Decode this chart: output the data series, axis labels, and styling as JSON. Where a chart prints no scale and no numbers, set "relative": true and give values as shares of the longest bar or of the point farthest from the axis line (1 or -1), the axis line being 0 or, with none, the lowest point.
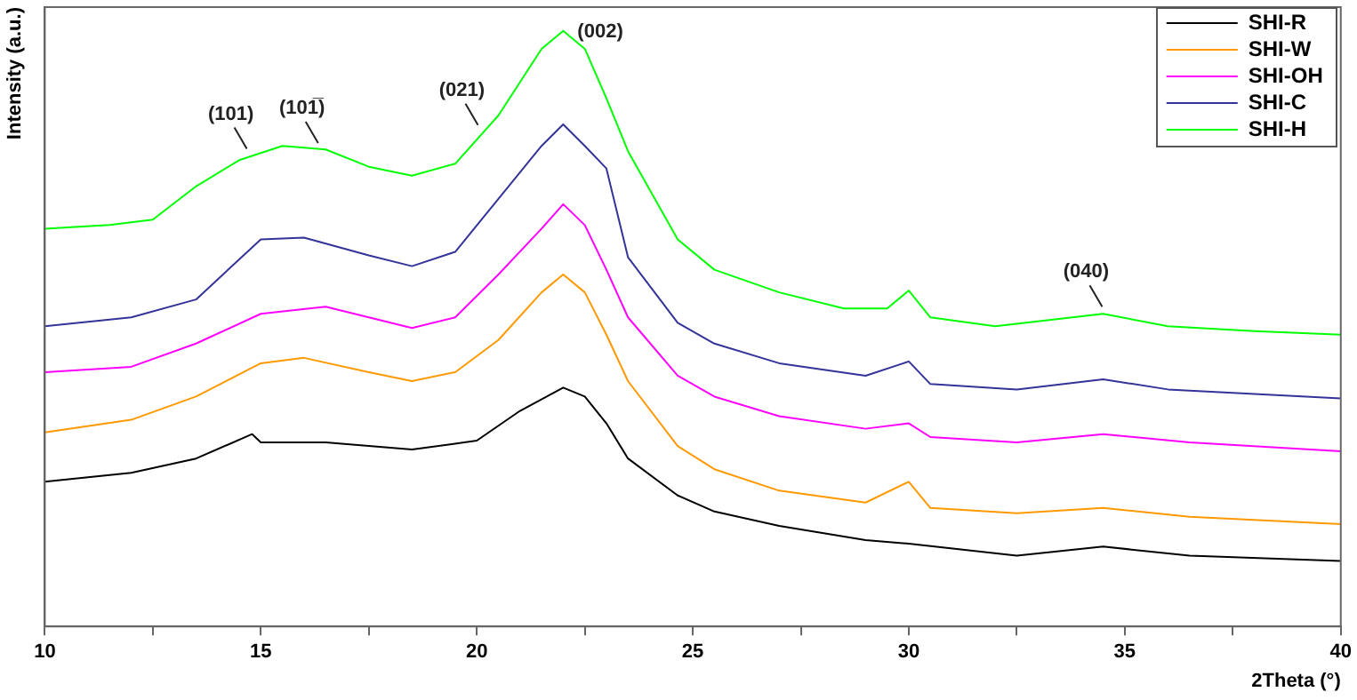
{
  "chart_data": {
    "type": "line",
    "xlabel": "2Theta (°)",
    "ylabel": "Intensity (a.u.)",
    "relative": true,
    "grid": false,
    "legend": "top right",
    "marker": "none",
    "line_style": "solid",
    "xlim": [
      10,
      40
    ],
    "xticks": [
      10,
      {
        "value": 12.5,
        "label": null
      },
      15,
      {
        "value": 17.5,
        "label": null
      },
      20,
      {
        "value": 22.5,
        "label": null
      },
      25,
      {
        "value": 27.5,
        "label": null
      },
      30,
      {
        "value": 32.5,
        "label": null
      },
      35,
      {
        "value": 37.5,
        "label": null
      },
      40
    ],
    "annotations": [
      {
        "text": "(101)",
        "x": 14.8,
        "y": 0.79
      },
      {
        "text": "(101̅)",
        "x": 16.45,
        "y": 0.8
      },
      {
        "text": "(021)",
        "x": 20.15,
        "y": 0.83
      },
      {
        "text": "(002)",
        "x": 22,
        "y": 1.0
      },
      {
        "text": "(040)",
        "x": 34.6,
        "y": 0.525
      }
    ],
    "series": [
      {
        "name": "SHI-R",
        "color": "#000000",
        "x": [
          10,
          12,
          13.5,
          14.8,
          15,
          16.5,
          18.5,
          20,
          21,
          22,
          22.5,
          23,
          23.5,
          24.65,
          25.5,
          27,
          29,
          30,
          32.5,
          34.5,
          36.5,
          40
        ],
        "values": [
          0.243,
          0.258,
          0.282,
          0.323,
          0.309,
          0.309,
          0.297,
          0.312,
          0.362,
          0.401,
          0.386,
          0.341,
          0.282,
          0.22,
          0.193,
          0.169,
          0.145,
          0.139,
          0.119,
          0.134,
          0.119,
          0.11
        ]
      },
      {
        "name": "SHI-W",
        "color": "#ff9900",
        "x": [
          10,
          12,
          13.5,
          15,
          16,
          17.5,
          18.5,
          19.5,
          20.5,
          21.5,
          22,
          22.5,
          23,
          23.5,
          24.65,
          25.5,
          27,
          29,
          30,
          30.5,
          32.5,
          34.5,
          36.5,
          40
        ],
        "values": [
          0.326,
          0.347,
          0.386,
          0.442,
          0.451,
          0.427,
          0.412,
          0.427,
          0.481,
          0.561,
          0.591,
          0.561,
          0.49,
          0.412,
          0.303,
          0.264,
          0.228,
          0.208,
          0.243,
          0.199,
          0.19,
          0.199,
          0.184,
          0.172
        ]
      },
      {
        "name": "SHI-OH",
        "color": "#ff00ff",
        "x": [
          10,
          12,
          13.5,
          15,
          16.5,
          17.5,
          18.5,
          19.5,
          20.5,
          21.5,
          22,
          22.5,
          23,
          23.5,
          24.65,
          25.5,
          27,
          29,
          30,
          30.5,
          32.5,
          34.5,
          36.5,
          40
        ],
        "values": [
          0.427,
          0.436,
          0.475,
          0.525,
          0.537,
          0.519,
          0.501,
          0.519,
          0.591,
          0.668,
          0.709,
          0.674,
          0.599,
          0.519,
          0.421,
          0.386,
          0.353,
          0.332,
          0.341,
          0.318,
          0.309,
          0.323,
          0.309,
          0.294
        ]
      },
      {
        "name": "SHI-C",
        "color": "#333399",
        "x": [
          10,
          12,
          13.5,
          15,
          16,
          17.5,
          18.5,
          19.5,
          20.5,
          21.5,
          22,
          22.5,
          23,
          23.5,
          24.65,
          25.5,
          27,
          29,
          30,
          30.5,
          32.5,
          34.5,
          36,
          40
        ],
        "values": [
          0.504,
          0.519,
          0.549,
          0.65,
          0.653,
          0.623,
          0.605,
          0.629,
          0.718,
          0.807,
          0.843,
          0.807,
          0.769,
          0.62,
          0.51,
          0.475,
          0.442,
          0.421,
          0.445,
          0.407,
          0.398,
          0.415,
          0.398,
          0.383
        ]
      },
      {
        "name": "SHI-H",
        "color": "#00ff00",
        "x": [
          10,
          11.5,
          12.5,
          13.5,
          14.5,
          15.5,
          16.5,
          17.5,
          18.5,
          19.5,
          20.5,
          21.5,
          22,
          22.5,
          23,
          23.5,
          24.65,
          25.5,
          27,
          28.5,
          29.5,
          30,
          30.5,
          32,
          34.5,
          36,
          38,
          40
        ],
        "values": [
          0.668,
          0.674,
          0.683,
          0.739,
          0.783,
          0.807,
          0.801,
          0.772,
          0.757,
          0.777,
          0.858,
          0.97,
          1.0,
          0.97,
          0.887,
          0.798,
          0.65,
          0.599,
          0.561,
          0.534,
          0.534,
          0.564,
          0.519,
          0.504,
          0.525,
          0.504,
          0.496,
          0.49
        ]
      }
    ]
  }
}
